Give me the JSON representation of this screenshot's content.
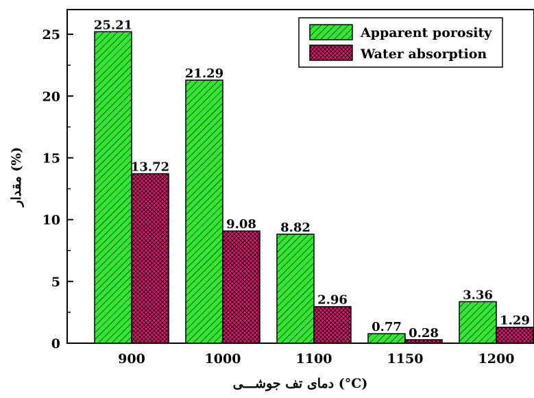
{
  "chart_data": {
    "type": "bar",
    "categories": [
      "900",
      "1000",
      "1100",
      "1150",
      "1200"
    ],
    "series": [
      {
        "name": "Apparent porosity",
        "values": [
          25.21,
          21.29,
          8.82,
          0.77,
          3.36
        ],
        "labels": [
          "25.21",
          "21.29",
          "8.82",
          "0.77",
          "3.36"
        ],
        "color": "#33e633",
        "pattern": "diagonal-hatch"
      },
      {
        "name": "Water absorption",
        "values": [
          13.72,
          9.08,
          2.96,
          0.28,
          1.29
        ],
        "labels": [
          "13.72",
          "9.08",
          "2.96",
          "0.28",
          "1.29"
        ],
        "color": "#e0116f",
        "pattern": "cross-hatch"
      }
    ],
    "xlabel": "دمای تف جوشـــی (°C)",
    "ylabel": "مقدار (%)",
    "ylim": [
      0,
      27
    ],
    "yticks": [
      "0",
      "5",
      "10",
      "15",
      "20",
      "25"
    ],
    "grid": false,
    "legend_position": "top-right"
  }
}
